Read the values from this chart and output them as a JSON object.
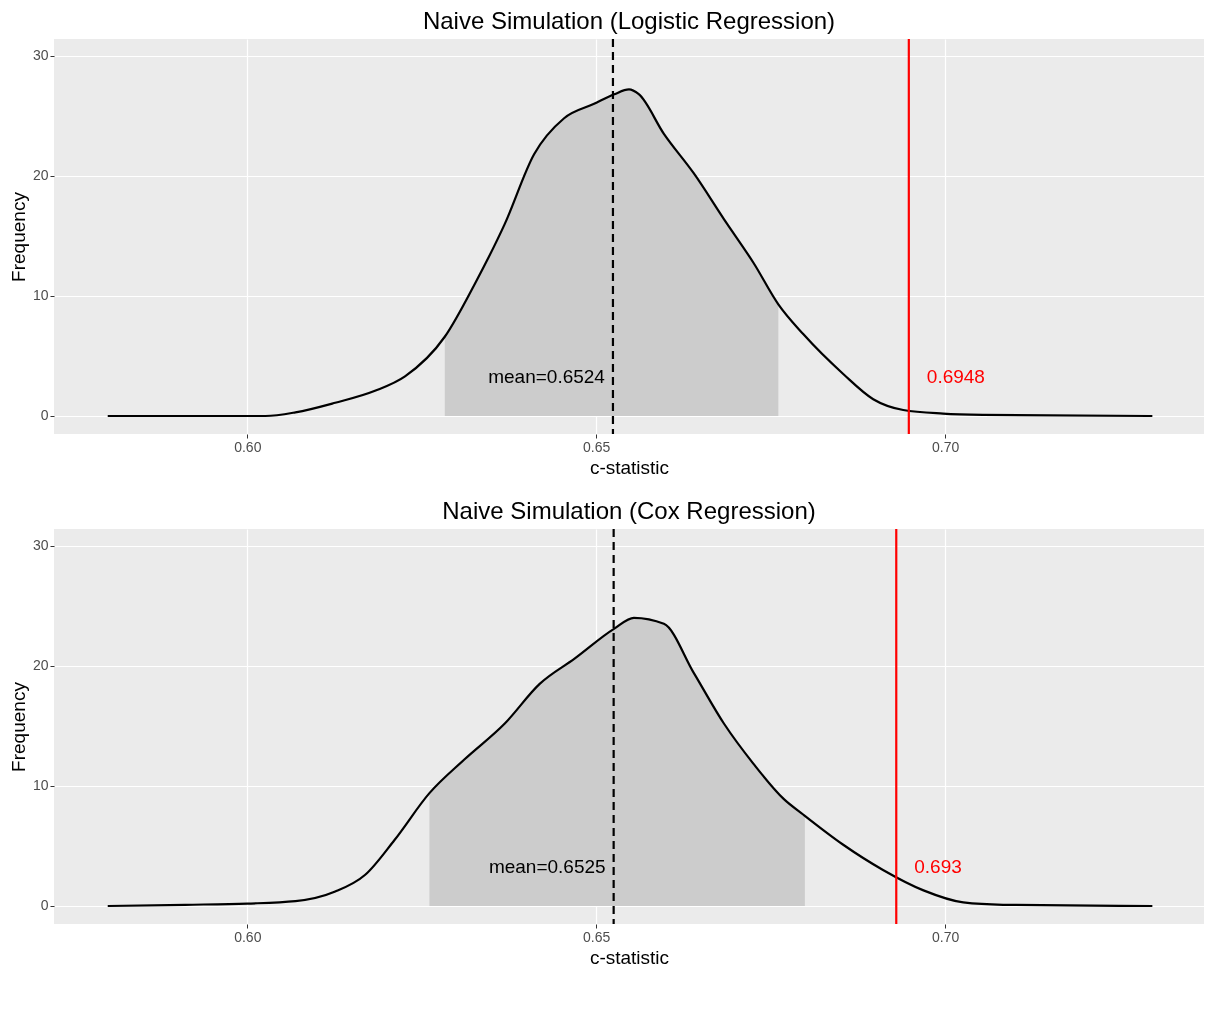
{
  "chart_data": [
    {
      "type": "line",
      "title": "Naive Simulation (Logistic Regression)",
      "xlabel": "c-statistic",
      "ylabel": "Frequency",
      "xlim": [
        0.5723,
        0.7371
      ],
      "ylim": [
        -1.5,
        31.4
      ],
      "xticks": [
        {
          "value": 0.6,
          "label": "0.60"
        },
        {
          "value": 0.65,
          "label": "0.65"
        },
        {
          "value": 0.7,
          "label": "0.70"
        }
      ],
      "yticks": [
        0,
        10,
        20,
        30
      ],
      "grid": true,
      "legend": false,
      "series": [
        {
          "type": "area",
          "color": "#cccccc",
          "x": [
            0.6283,
            0.6326,
            0.6369,
            0.6411,
            0.6454,
            0.6497,
            0.6526,
            0.6547,
            0.6561,
            0.6597,
            0.664,
            0.6683,
            0.6726,
            0.6761
          ],
          "values": [
            6.6,
            11,
            16,
            21.8,
            24.8,
            26,
            26.8,
            27.2,
            26.8,
            23.5,
            20.2,
            16.4,
            12.7,
            9.3
          ]
        },
        {
          "type": "line",
          "color": "#000000",
          "x": [
            0.58,
            0.6026,
            0.6069,
            0.6126,
            0.6183,
            0.6226,
            0.6283,
            0.6326,
            0.6369,
            0.6411,
            0.6454,
            0.6497,
            0.6526,
            0.6547,
            0.6561,
            0.6597,
            0.664,
            0.6683,
            0.6726,
            0.6761,
            0.6797,
            0.6854,
            0.6897,
            0.694,
            0.6997,
            0.7054,
            0.7297
          ],
          "values": [
            0,
            0,
            0.3,
            1.1,
            2.1,
            3.3,
            6.6,
            11,
            16,
            21.8,
            24.8,
            26,
            26.8,
            27.2,
            26.8,
            23.5,
            20.2,
            16.4,
            12.7,
            9.3,
            6.8,
            3.5,
            1.4,
            0.5,
            0.2,
            0.1,
            0
          ]
        }
      ],
      "ref_lines": [
        {
          "axis": "x",
          "value": 0.6524,
          "label": "mean=0.6524",
          "color": "#000000",
          "line_style": "dashed"
        },
        {
          "axis": "x",
          "value": 0.6948,
          "label": "0.6948",
          "color": "#ff0000",
          "line_style": "solid"
        }
      ]
    },
    {
      "type": "line",
      "title": "Naive Simulation (Cox Regression)",
      "xlabel": "c-statistic",
      "ylabel": "Frequency",
      "xlim": [
        0.5723,
        0.7371
      ],
      "ylim": [
        -1.5,
        31.4
      ],
      "xticks": [
        {
          "value": 0.6,
          "label": "0.60"
        },
        {
          "value": 0.65,
          "label": "0.65"
        },
        {
          "value": 0.7,
          "label": "0.70"
        }
      ],
      "yticks": [
        0,
        10,
        20,
        30
      ],
      "grid": true,
      "legend": false,
      "series": [
        {
          "type": "area",
          "color": "#cccccc",
          "x": [
            0.6261,
            0.6311,
            0.6369,
            0.6419,
            0.6469,
            0.6526,
            0.6554,
            0.6597,
            0.664,
            0.6683,
            0.6726,
            0.6769,
            0.6799
          ],
          "values": [
            9.4,
            12.2,
            15.2,
            18.5,
            20.6,
            23.1,
            24,
            23.5,
            19.4,
            15.2,
            11.8,
            8.9,
            7.5
          ]
        },
        {
          "type": "line",
          "color": "#000000",
          "x": [
            0.58,
            0.5911,
            0.6,
            0.6069,
            0.6126,
            0.6169,
            0.6211,
            0.6261,
            0.6311,
            0.6369,
            0.6419,
            0.6469,
            0.6526,
            0.6554,
            0.6597,
            0.664,
            0.6683,
            0.6726,
            0.6769,
            0.6797,
            0.6854,
            0.6911,
            0.6969,
            0.7026,
            0.7083,
            0.7297
          ],
          "values": [
            0,
            0.1,
            0.2,
            0.4,
            1.2,
            2.6,
            5.5,
            9.4,
            12.2,
            15.2,
            18.5,
            20.6,
            23.1,
            24,
            23.5,
            19.4,
            15.2,
            11.8,
            8.9,
            7.6,
            5.1,
            3.0,
            1.3,
            0.3,
            0.1,
            0
          ]
        }
      ],
      "ref_lines": [
        {
          "axis": "x",
          "value": 0.6525,
          "label": "mean=0.6525",
          "color": "#000000",
          "line_style": "dashed"
        },
        {
          "axis": "x",
          "value": 0.693,
          "label": "0.693",
          "color": "#ff0000",
          "line_style": "solid"
        }
      ]
    }
  ]
}
